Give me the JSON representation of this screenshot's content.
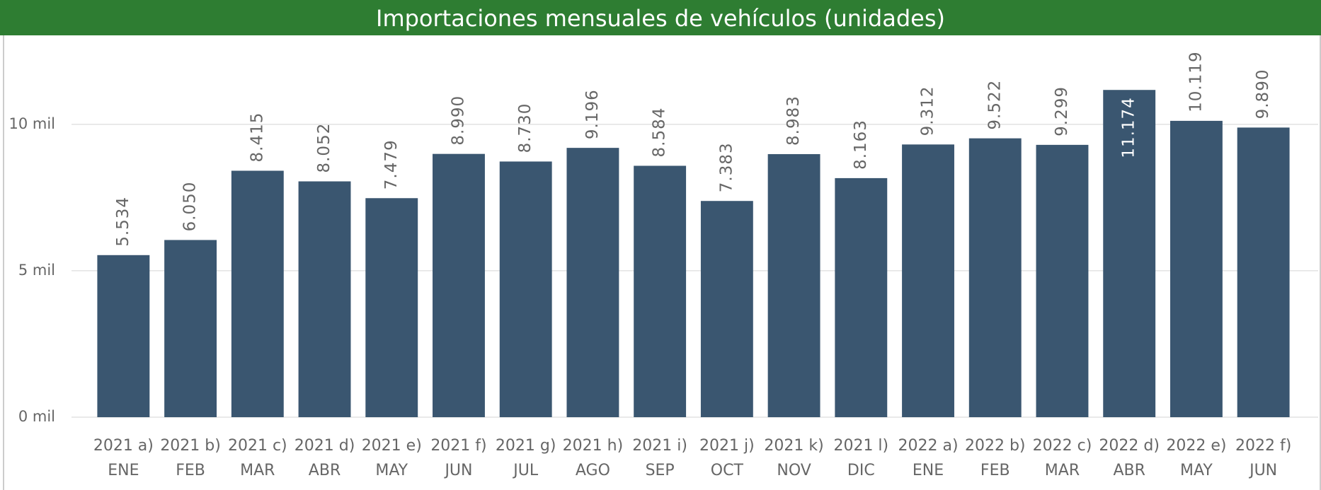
{
  "chart_data": {
    "type": "bar",
    "title": "Importaciones mensuales de vehículos (unidades)",
    "categories": [
      [
        "2021 a)",
        "ENE"
      ],
      [
        "2021 b)",
        "FEB"
      ],
      [
        "2021 c)",
        "MAR"
      ],
      [
        "2021 d)",
        "ABR"
      ],
      [
        "2021 e)",
        "MAY"
      ],
      [
        "2021 f)",
        "JUN"
      ],
      [
        "2021 g)",
        "JUL"
      ],
      [
        "2021 h)",
        "AGO"
      ],
      [
        "2021 i)",
        "SEP"
      ],
      [
        "2021 j)",
        "OCT"
      ],
      [
        "2021 k)",
        "NOV"
      ],
      [
        "2021 l)",
        "DIC"
      ],
      [
        "2022 a)",
        "ENE"
      ],
      [
        "2022 b)",
        "FEB"
      ],
      [
        "2022 c)",
        "MAR"
      ],
      [
        "2022 d)",
        "ABR"
      ],
      [
        "2022 e)",
        "MAY"
      ],
      [
        "2022 f)",
        "JUN"
      ]
    ],
    "values": [
      5534,
      6050,
      8415,
      8052,
      7479,
      8990,
      8730,
      9196,
      8584,
      7383,
      8983,
      8163,
      9312,
      9522,
      9299,
      11174,
      10119,
      9890
    ],
    "value_labels": [
      "5.534",
      "6.050",
      "8.415",
      "8.052",
      "7.479",
      "8.990",
      "8.730",
      "9.196",
      "8.584",
      "7.383",
      "8.983",
      "8.163",
      "9.312",
      "9.522",
      "9.299",
      "11.174",
      "10.119",
      "9.890"
    ],
    "color": "#3a5670",
    "ylim": [
      0,
      12000
    ],
    "yticks": [
      {
        "value": 0,
        "label": "0 mil"
      },
      {
        "value": 5000,
        "label": "5 mil"
      },
      {
        "value": 10000,
        "label": "10 mil"
      }
    ],
    "grid": true
  }
}
